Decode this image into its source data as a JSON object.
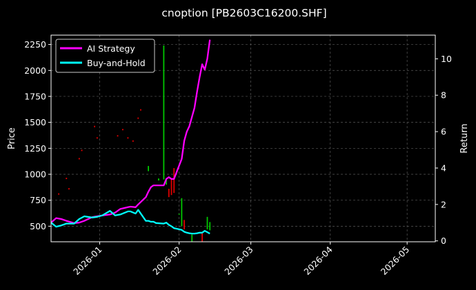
{
  "chart_data": {
    "type": "line",
    "title": "cnoption [PB2603C16200.SHF]",
    "xlabel": "",
    "ylabel_left": "Price",
    "ylabel_right": "Return",
    "x_range": [
      "2025-12-13",
      "2026-05-12"
    ],
    "x_ticks": [
      "2026-01",
      "2026-02",
      "2026-03",
      "2026-04",
      "2026-05"
    ],
    "y_left_range": [
      350,
      2340
    ],
    "y_left_ticks": [
      500,
      750,
      1000,
      1250,
      1500,
      1750,
      2000,
      2250
    ],
    "y_right_range": [
      -0.05,
      11.3
    ],
    "y_right_ticks": [
      0,
      2,
      4,
      6,
      8,
      10
    ],
    "grid": true,
    "legend_position": "top-left",
    "colors": {
      "background": "#000000",
      "ai": "#ff00ff",
      "buy_hold": "#00ffff",
      "up": "#00c800",
      "down": "#e00000",
      "axes": "#ffffff",
      "grid": "#5a5a5a"
    },
    "series": [
      {
        "name": "AI Strategy",
        "axis": "right",
        "x": [
          "2025-12-13",
          "2025-12-15",
          "2025-12-17",
          "2025-12-19",
          "2025-12-22",
          "2025-12-24",
          "2025-12-26",
          "2025-12-29",
          "2025-12-31",
          "2026-01-02",
          "2026-01-05",
          "2026-01-07",
          "2026-01-09",
          "2026-01-12",
          "2026-01-13",
          "2026-01-15",
          "2026-01-16",
          "2026-01-19",
          "2026-01-20",
          "2026-01-21",
          "2026-01-22",
          "2026-01-23",
          "2026-01-26",
          "2026-01-27",
          "2026-01-28",
          "2026-01-29",
          "2026-01-30",
          "2026-02-02",
          "2026-02-03",
          "2026-02-04",
          "2026-02-05",
          "2026-02-06",
          "2026-02-07",
          "2026-02-08",
          "2026-02-09",
          "2026-02-10",
          "2026-02-11",
          "2026-02-12",
          "2026-02-13"
        ],
        "values": [
          1.0,
          1.25,
          1.2,
          1.1,
          0.98,
          1.0,
          1.1,
          1.3,
          1.35,
          1.4,
          1.45,
          1.55,
          1.75,
          1.85,
          1.88,
          1.85,
          2.0,
          2.4,
          2.7,
          2.95,
          3.05,
          3.05,
          3.05,
          3.4,
          3.5,
          3.4,
          3.4,
          4.5,
          5.5,
          6.0,
          6.3,
          6.8,
          7.3,
          8.2,
          9.0,
          9.7,
          9.4,
          10.0,
          11.05
        ]
      },
      {
        "name": "Buy-and-Hold",
        "axis": "right",
        "x": [
          "2025-12-13",
          "2025-12-15",
          "2025-12-17",
          "2025-12-19",
          "2025-12-22",
          "2025-12-24",
          "2025-12-26",
          "2025-12-29",
          "2025-12-31",
          "2026-01-02",
          "2026-01-05",
          "2026-01-07",
          "2026-01-09",
          "2026-01-12",
          "2026-01-13",
          "2026-01-15",
          "2026-01-16",
          "2026-01-19",
          "2026-01-20",
          "2026-01-21",
          "2026-01-22",
          "2026-01-23",
          "2026-01-26",
          "2026-01-27",
          "2026-01-28",
          "2026-01-29",
          "2026-01-30",
          "2026-02-02",
          "2026-02-03",
          "2026-02-04",
          "2026-02-05",
          "2026-02-06",
          "2026-02-07",
          "2026-02-08",
          "2026-02-09",
          "2026-02-10",
          "2026-02-11",
          "2026-02-12",
          "2026-02-13"
        ],
        "values": [
          1.0,
          0.78,
          0.85,
          0.95,
          0.95,
          1.2,
          1.35,
          1.28,
          1.32,
          1.4,
          1.65,
          1.4,
          1.45,
          1.62,
          1.62,
          1.5,
          1.7,
          1.1,
          1.1,
          1.05,
          1.05,
          0.98,
          0.95,
          1.0,
          0.88,
          0.8,
          0.7,
          0.6,
          0.5,
          0.45,
          0.42,
          0.4,
          0.4,
          0.42,
          0.45,
          0.45,
          0.55,
          0.48,
          0.4
        ]
      }
    ],
    "candles": [
      {
        "x": "2025-12-16",
        "price": 810,
        "dir": "down"
      },
      {
        "x": "2025-12-19",
        "price": 960,
        "dir": "down"
      },
      {
        "x": "2025-12-20",
        "price": 860,
        "dir": "down"
      },
      {
        "x": "2025-12-24",
        "price": 1150,
        "dir": "down"
      },
      {
        "x": "2025-12-25",
        "price": 1230,
        "dir": "down"
      },
      {
        "x": "2025-12-30",
        "price": 1460,
        "dir": "down"
      },
      {
        "x": "2025-12-31",
        "price": 1350,
        "dir": "down"
      },
      {
        "x": "2026-01-08",
        "price": 1370,
        "dir": "down"
      },
      {
        "x": "2026-01-10",
        "price": 1430,
        "dir": "down"
      },
      {
        "x": "2026-01-12",
        "price": 1350,
        "dir": "down"
      },
      {
        "x": "2026-01-14",
        "price": 1320,
        "dir": "down"
      },
      {
        "x": "2026-01-16",
        "price": 1540,
        "dir": "down"
      },
      {
        "x": "2026-01-17",
        "price": 1620,
        "dir": "down"
      },
      {
        "x": "2026-01-20",
        "open": 1030,
        "close": 1080,
        "dir": "up"
      },
      {
        "x": "2026-01-24",
        "open": 940,
        "close": 960,
        "dir": "up"
      },
      {
        "x": "2026-01-26",
        "open": 950,
        "close": 2240,
        "dir": "up"
      },
      {
        "x": "2026-01-27",
        "open": 900,
        "close": 950,
        "dir": "up"
      },
      {
        "x": "2026-01-28",
        "open": 860,
        "close": 780,
        "dir": "down"
      },
      {
        "x": "2026-01-29",
        "open": 950,
        "close": 800,
        "dir": "down"
      },
      {
        "x": "2026-01-30",
        "open": 1060,
        "close": 820,
        "dir": "down"
      },
      {
        "x": "2026-02-01",
        "open": 620,
        "close": 620,
        "dir": "up"
      },
      {
        "x": "2026-02-02",
        "open": 500,
        "close": 770,
        "dir": "up"
      },
      {
        "x": "2026-02-03",
        "open": 470,
        "close": 560,
        "dir": "down"
      },
      {
        "x": "2026-02-06",
        "open": 350,
        "close": 420,
        "dir": "up"
      },
      {
        "x": "2026-02-10",
        "open": 430,
        "close": 350,
        "dir": "down"
      },
      {
        "x": "2026-02-12",
        "open": 470,
        "close": 590,
        "dir": "up"
      },
      {
        "x": "2026-02-13",
        "open": 460,
        "close": 540,
        "dir": "up"
      }
    ]
  }
}
